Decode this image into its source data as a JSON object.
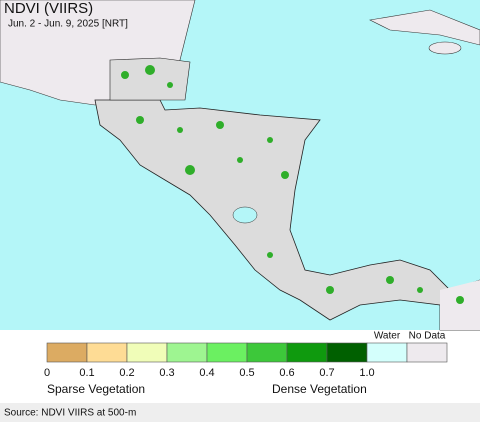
{
  "title": "NDVI (VIIRS)",
  "subtitle": "Jun. 2 - Jun. 9, 2025 [NRT]",
  "legend": {
    "colors": [
      "#dcab62",
      "#fedc95",
      "#f0fdb8",
      "#9ef591",
      "#6bf061",
      "#3dc83a",
      "#0f9a0e",
      "#006000"
    ],
    "ticks": [
      "0",
      "0.1",
      "0.2",
      "0.3",
      "0.4",
      "0.5",
      "0.6",
      "0.7",
      "1.0"
    ],
    "water": {
      "label": "Water",
      "color": "#d4fffc"
    },
    "no_data": {
      "label": "No Data",
      "color": "#eeeaee"
    },
    "sparse_label": "Sparse Vegetation",
    "dense_label": "Dense Vegetation"
  },
  "source": "Source: NDVI VIIRS at 500-m"
}
